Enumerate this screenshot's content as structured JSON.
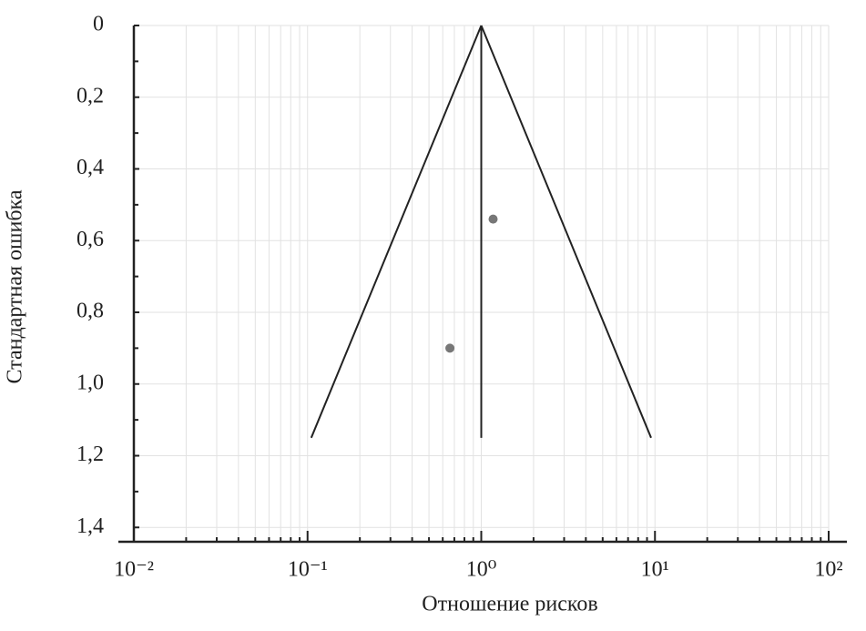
{
  "chart_data": {
    "type": "scatter",
    "x_label": "Отношение рисков",
    "y_label": "Стандартная ошибка",
    "x": [
      1.17,
      0.66
    ],
    "values": [
      0.54,
      0.9
    ],
    "color": "#777777",
    "funnel": {
      "center": 1,
      "se_max": 1.15,
      "lower": 0.105,
      "upper": 9.5
    },
    "x_log": true,
    "y_inverted": true,
    "grid": true,
    "xlim": [
      0.01,
      100
    ],
    "xticks": [
      {
        "value": 0.01,
        "label": "10⁻²"
      },
      {
        "value": 0.1,
        "label": "10⁻¹"
      },
      {
        "value": 1,
        "label": "10⁰"
      },
      {
        "value": 10,
        "label": "10¹"
      },
      {
        "value": 100,
        "label": "10²"
      }
    ],
    "ylim": [
      0,
      1.44
    ],
    "yticks": [
      0,
      {
        "value": 0.2,
        "label": "0,2"
      },
      {
        "value": 0.4,
        "label": "0,4"
      },
      {
        "value": 0.6,
        "label": "0,6"
      },
      {
        "value": 0.8,
        "label": "0,8"
      },
      {
        "value": 1.0,
        "label": "1,0"
      },
      {
        "value": 1.2,
        "label": "1,2"
      },
      {
        "value": 1.4,
        "label": "1,4"
      }
    ]
  }
}
